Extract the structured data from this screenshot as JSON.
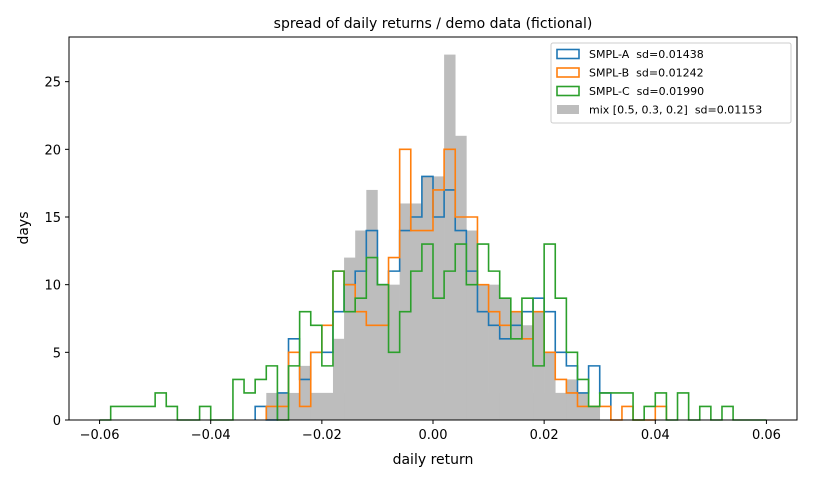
{
  "chart_data": {
    "type": "histogram",
    "title": "spread of daily returns / demo data (fictional)",
    "xlabel": "daily return",
    "ylabel": "days",
    "xlim": [
      -0.0655,
      0.0655
    ],
    "ylim": [
      0,
      28.3
    ],
    "xticks": [
      -0.06,
      -0.04,
      -0.02,
      0.0,
      0.02,
      0.04,
      0.06
    ],
    "xtick_labels": [
      "−0.06",
      "−0.04",
      "−0.02",
      "0.00",
      "0.02",
      "0.04",
      "0.06"
    ],
    "yticks": [
      0,
      5,
      10,
      15,
      20,
      25
    ],
    "ytick_labels": [
      "0",
      "5",
      "10",
      "15",
      "20",
      "25"
    ],
    "grid": false,
    "legend_position": "top-right",
    "series": [
      {
        "name": "mix [0.5, 0.3, 0.2]  sd=0.01153",
        "style": "filled",
        "color": "#bdbdbd",
        "bins": [
          [
            -0.03,
            0.028,
            2
          ],
          [
            -0.028,
            -0.024,
            0
          ],
          [
            -0.024,
            -0.022,
            4
          ],
          [
            -0.022,
            -0.018,
            2
          ],
          [
            -0.018,
            -0.016,
            6
          ],
          [
            -0.016,
            -0.014,
            12
          ],
          [
            -0.014,
            -0.012,
            14
          ],
          [
            -0.012,
            -0.01,
            17
          ],
          [
            -0.01,
            -0.006,
            10
          ],
          [
            -0.006,
            -0.004,
            16
          ],
          [
            -0.004,
            -0.002,
            16
          ],
          [
            -0.002,
            0.0,
            18
          ],
          [
            0.0,
            0.002,
            18
          ],
          [
            0.002,
            0.004,
            27
          ],
          [
            0.004,
            0.006,
            21
          ],
          [
            0.006,
            0.008,
            14
          ],
          [
            0.008,
            0.01,
            10
          ],
          [
            0.01,
            0.012,
            10
          ],
          [
            0.012,
            0.014,
            9
          ],
          [
            0.014,
            0.016,
            8
          ],
          [
            0.016,
            0.018,
            7
          ],
          [
            0.018,
            0.02,
            8
          ],
          [
            0.02,
            0.022,
            5
          ],
          [
            0.022,
            0.024,
            2
          ],
          [
            0.024,
            0.026,
            3
          ],
          [
            0.026,
            0.03,
            1
          ]
        ]
      },
      {
        "name": "SMPL-A  sd=0.01438",
        "style": "step",
        "color": "#1f77b4",
        "bins": [
          [
            -0.032,
            -0.03,
            1
          ],
          [
            -0.03,
            -0.028,
            0
          ],
          [
            -0.028,
            -0.026,
            2
          ],
          [
            -0.026,
            -0.024,
            6
          ],
          [
            -0.024,
            -0.022,
            3
          ],
          [
            -0.022,
            -0.02,
            5
          ],
          [
            -0.02,
            -0.018,
            5
          ],
          [
            -0.018,
            -0.016,
            8
          ],
          [
            -0.016,
            -0.014,
            10
          ],
          [
            -0.014,
            -0.012,
            11
          ],
          [
            -0.012,
            -0.01,
            14
          ],
          [
            -0.01,
            -0.008,
            10
          ],
          [
            -0.008,
            -0.006,
            11
          ],
          [
            -0.006,
            -0.004,
            14
          ],
          [
            -0.004,
            -0.002,
            15
          ],
          [
            -0.002,
            0.0,
            18
          ],
          [
            0.0,
            0.002,
            15
          ],
          [
            0.002,
            0.004,
            17
          ],
          [
            0.004,
            0.006,
            14
          ],
          [
            0.006,
            0.008,
            11
          ],
          [
            0.008,
            0.01,
            8
          ],
          [
            0.01,
            0.012,
            7
          ],
          [
            0.012,
            0.014,
            6
          ],
          [
            0.014,
            0.016,
            7
          ],
          [
            0.016,
            0.018,
            8
          ],
          [
            0.018,
            0.02,
            9
          ],
          [
            0.02,
            0.022,
            8
          ],
          [
            0.022,
            0.024,
            5
          ],
          [
            0.024,
            0.026,
            4
          ],
          [
            0.026,
            0.028,
            2
          ],
          [
            0.028,
            0.03,
            4
          ],
          [
            0.03,
            0.032,
            2
          ]
        ]
      },
      {
        "name": "SMPL-B  sd=0.01242",
        "style": "step",
        "color": "#ff7f0e",
        "bins": [
          [
            -0.03,
            -0.028,
            1
          ],
          [
            -0.028,
            -0.026,
            1
          ],
          [
            -0.026,
            -0.024,
            5
          ],
          [
            -0.024,
            -0.022,
            1
          ],
          [
            -0.022,
            -0.02,
            5
          ],
          [
            -0.02,
            -0.018,
            7
          ],
          [
            -0.018,
            -0.016,
            11
          ],
          [
            -0.016,
            -0.014,
            10
          ],
          [
            -0.014,
            -0.012,
            8
          ],
          [
            -0.012,
            -0.01,
            7
          ],
          [
            -0.01,
            -0.008,
            7
          ],
          [
            -0.008,
            -0.006,
            12
          ],
          [
            -0.006,
            -0.004,
            20
          ],
          [
            -0.004,
            -0.002,
            14
          ],
          [
            -0.002,
            0.0,
            14
          ],
          [
            0.0,
            0.002,
            17
          ],
          [
            0.002,
            0.004,
            20
          ],
          [
            0.004,
            0.006,
            15
          ],
          [
            0.006,
            0.008,
            15
          ],
          [
            0.008,
            0.01,
            10
          ],
          [
            0.01,
            0.012,
            8
          ],
          [
            0.012,
            0.014,
            7
          ],
          [
            0.014,
            0.016,
            8
          ],
          [
            0.016,
            0.018,
            6
          ],
          [
            0.018,
            0.02,
            8
          ],
          [
            0.02,
            0.022,
            5
          ],
          [
            0.022,
            0.024,
            3
          ],
          [
            0.024,
            0.026,
            2
          ],
          [
            0.026,
            0.032,
            1
          ],
          [
            0.032,
            0.034,
            0
          ],
          [
            0.034,
            0.036,
            1
          ],
          [
            0.036,
            0.04,
            0
          ],
          [
            0.04,
            0.042,
            1
          ]
        ]
      },
      {
        "name": "SMPL-C  sd=0.01990",
        "style": "step",
        "color": "#2ca02c",
        "bins": [
          [
            -0.06,
            -0.058,
            0
          ],
          [
            -0.058,
            -0.052,
            1
          ],
          [
            -0.052,
            -0.05,
            1
          ],
          [
            -0.05,
            -0.048,
            2
          ],
          [
            -0.048,
            -0.046,
            1
          ],
          [
            -0.046,
            -0.042,
            0
          ],
          [
            -0.042,
            -0.04,
            1
          ],
          [
            -0.04,
            -0.036,
            0
          ],
          [
            -0.036,
            -0.034,
            3
          ],
          [
            -0.034,
            -0.032,
            2
          ],
          [
            -0.032,
            -0.03,
            3
          ],
          [
            -0.03,
            -0.028,
            4
          ],
          [
            -0.028,
            -0.026,
            0
          ],
          [
            -0.026,
            -0.024,
            4
          ],
          [
            -0.024,
            -0.022,
            8
          ],
          [
            -0.022,
            -0.02,
            7
          ],
          [
            -0.02,
            -0.018,
            4
          ],
          [
            -0.018,
            -0.016,
            11
          ],
          [
            -0.016,
            -0.014,
            8
          ],
          [
            -0.014,
            -0.012,
            9
          ],
          [
            -0.012,
            -0.01,
            12
          ],
          [
            -0.01,
            -0.008,
            10
          ],
          [
            -0.008,
            -0.006,
            5
          ],
          [
            -0.006,
            -0.004,
            8
          ],
          [
            -0.004,
            -0.002,
            11
          ],
          [
            -0.002,
            0.0,
            13
          ],
          [
            0.0,
            0.002,
            9
          ],
          [
            0.002,
            0.004,
            11
          ],
          [
            0.004,
            0.006,
            13
          ],
          [
            0.006,
            0.008,
            10
          ],
          [
            0.008,
            0.01,
            13
          ],
          [
            0.01,
            0.012,
            11
          ],
          [
            0.012,
            0.014,
            9
          ],
          [
            0.014,
            0.016,
            6
          ],
          [
            0.016,
            0.018,
            9
          ],
          [
            0.018,
            0.02,
            4
          ],
          [
            0.02,
            0.022,
            13
          ],
          [
            0.022,
            0.024,
            9
          ],
          [
            0.024,
            0.026,
            5
          ],
          [
            0.026,
            0.028,
            3
          ],
          [
            0.028,
            0.03,
            1
          ],
          [
            0.03,
            0.036,
            2
          ],
          [
            0.036,
            0.038,
            0
          ],
          [
            0.038,
            0.04,
            1
          ],
          [
            0.04,
            0.042,
            2
          ],
          [
            0.042,
            0.044,
            0
          ],
          [
            0.044,
            0.046,
            2
          ],
          [
            0.046,
            0.048,
            0
          ],
          [
            0.048,
            0.05,
            1
          ],
          [
            0.05,
            0.052,
            0
          ],
          [
            0.052,
            0.054,
            1
          ],
          [
            0.054,
            0.06,
            0
          ]
        ]
      }
    ],
    "legend_order": [
      "SMPL-A  sd=0.01438",
      "SMPL-B  sd=0.01242",
      "SMPL-C  sd=0.01990",
      "mix [0.5, 0.3, 0.2]  sd=0.01153"
    ]
  }
}
